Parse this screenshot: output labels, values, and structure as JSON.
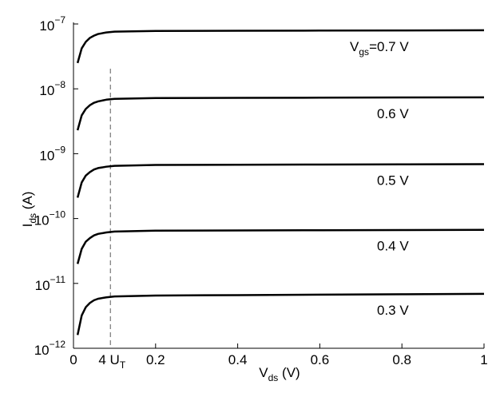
{
  "chart_data": {
    "type": "line",
    "log_y": true,
    "color": "#000000",
    "ylabel": {
      "main": "I",
      "sub": "ds",
      "rest": " (A)"
    },
    "xlabel": {
      "main": "V",
      "sub": "ds",
      "rest": " (V)"
    },
    "series_prefix": {
      "main": "V",
      "sub": "gs",
      "rest": "="
    },
    "ut_marker": {
      "x": 0.09,
      "label": {
        "main": "4 U",
        "sub": "T"
      }
    },
    "xlim": [
      0,
      1
    ],
    "xticks": [
      0,
      0.2,
      0.4,
      0.6,
      0.8,
      1
    ],
    "ylim": [
      1e-12,
      1e-07
    ],
    "yticks": [
      {
        "value": 1e-12,
        "label": "10",
        "exponent": "−12"
      },
      {
        "value": 1e-11,
        "label": "10",
        "exponent": "−11"
      },
      {
        "value": 1e-10,
        "label": "10",
        "exponent": "−10"
      },
      {
        "value": 1e-09,
        "label": "10",
        "exponent": "−9"
      },
      {
        "value": 1e-08,
        "label": "10",
        "exponent": "−8"
      },
      {
        "value": 1e-07,
        "label": "10",
        "exponent": "−7"
      }
    ],
    "x": [
      0.01,
      0.02,
      0.03,
      0.04,
      0.05,
      0.06,
      0.08,
      0.1,
      0.2,
      0.4,
      0.6,
      0.8,
      1
    ],
    "series": [
      {
        "name": "0.7 V",
        "values": [
          2.5e-08,
          4.2e-08,
          5.3e-08,
          6.1e-08,
          6.6e-08,
          7e-08,
          7.4e-08,
          7.6e-08,
          7.8e-08,
          7.85e-08,
          7.9e-08,
          7.95e-08,
          8e-08
        ]
      },
      {
        "name": "0.6 V",
        "values": [
          2.3e-09,
          3.9e-09,
          4.9e-09,
          5.6e-09,
          6.1e-09,
          6.4e-09,
          6.8e-09,
          7e-09,
          7.2e-09,
          7.25e-09,
          7.3e-09,
          7.35e-09,
          7.4e-09
        ]
      },
      {
        "name": "0.5 V",
        "values": [
          2.1e-10,
          3.6e-10,
          4.6e-10,
          5.2e-10,
          5.7e-10,
          6e-10,
          6.3e-10,
          6.5e-10,
          6.7e-10,
          6.75e-10,
          6.8e-10,
          6.85e-10,
          6.9e-10
        ]
      },
      {
        "name": "0.4 V",
        "values": [
          2e-11,
          3.4e-11,
          4.4e-11,
          5e-11,
          5.5e-11,
          5.8e-11,
          6.1e-11,
          6.3e-11,
          6.5e-11,
          6.55e-11,
          6.6e-11,
          6.65e-11,
          6.7e-11
        ]
      },
      {
        "name": "0.3 V",
        "values": [
          1.6e-12,
          3.2e-12,
          4.3e-12,
          5e-12,
          5.5e-12,
          5.8e-12,
          6.1e-12,
          6.3e-12,
          6.5e-12,
          6.6e-12,
          6.7e-12,
          6.8e-12,
          6.9e-12
        ]
      }
    ]
  }
}
